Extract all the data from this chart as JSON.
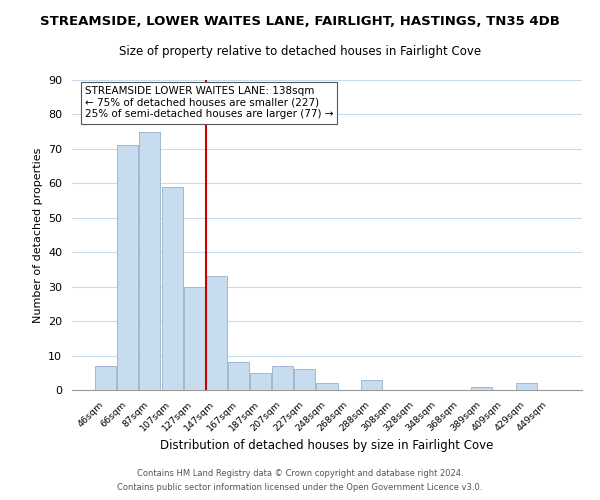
{
  "title": "STREAMSIDE, LOWER WAITES LANE, FAIRLIGHT, HASTINGS, TN35 4DB",
  "subtitle": "Size of property relative to detached houses in Fairlight Cove",
  "xlabel": "Distribution of detached houses by size in Fairlight Cove",
  "ylabel": "Number of detached properties",
  "bar_labels": [
    "46sqm",
    "66sqm",
    "87sqm",
    "107sqm",
    "127sqm",
    "147sqm",
    "167sqm",
    "187sqm",
    "207sqm",
    "227sqm",
    "248sqm",
    "268sqm",
    "288sqm",
    "308sqm",
    "328sqm",
    "348sqm",
    "368sqm",
    "389sqm",
    "409sqm",
    "429sqm",
    "449sqm"
  ],
  "bar_heights": [
    7,
    71,
    75,
    59,
    30,
    33,
    8,
    5,
    7,
    6,
    2,
    0,
    3,
    0,
    0,
    0,
    0,
    1,
    0,
    2,
    0
  ],
  "bar_color": "#c8dcf0",
  "bar_edge_color": "#a0b8d0",
  "ylim": [
    0,
    90
  ],
  "yticks": [
    0,
    10,
    20,
    30,
    40,
    50,
    60,
    70,
    80,
    90
  ],
  "property_line_color": "#cc0000",
  "annotation_line1": "STREAMSIDE LOWER WAITES LANE: 138sqm",
  "annotation_line2": "← 75% of detached houses are smaller (227)",
  "annotation_line3": "25% of semi-detached houses are larger (77) →",
  "annotation_box_color": "#ffffff",
  "footer_line1": "Contains HM Land Registry data © Crown copyright and database right 2024.",
  "footer_line2": "Contains public sector information licensed under the Open Government Licence v3.0.",
  "background_color": "#ffffff",
  "grid_color": "#c8dcf0"
}
